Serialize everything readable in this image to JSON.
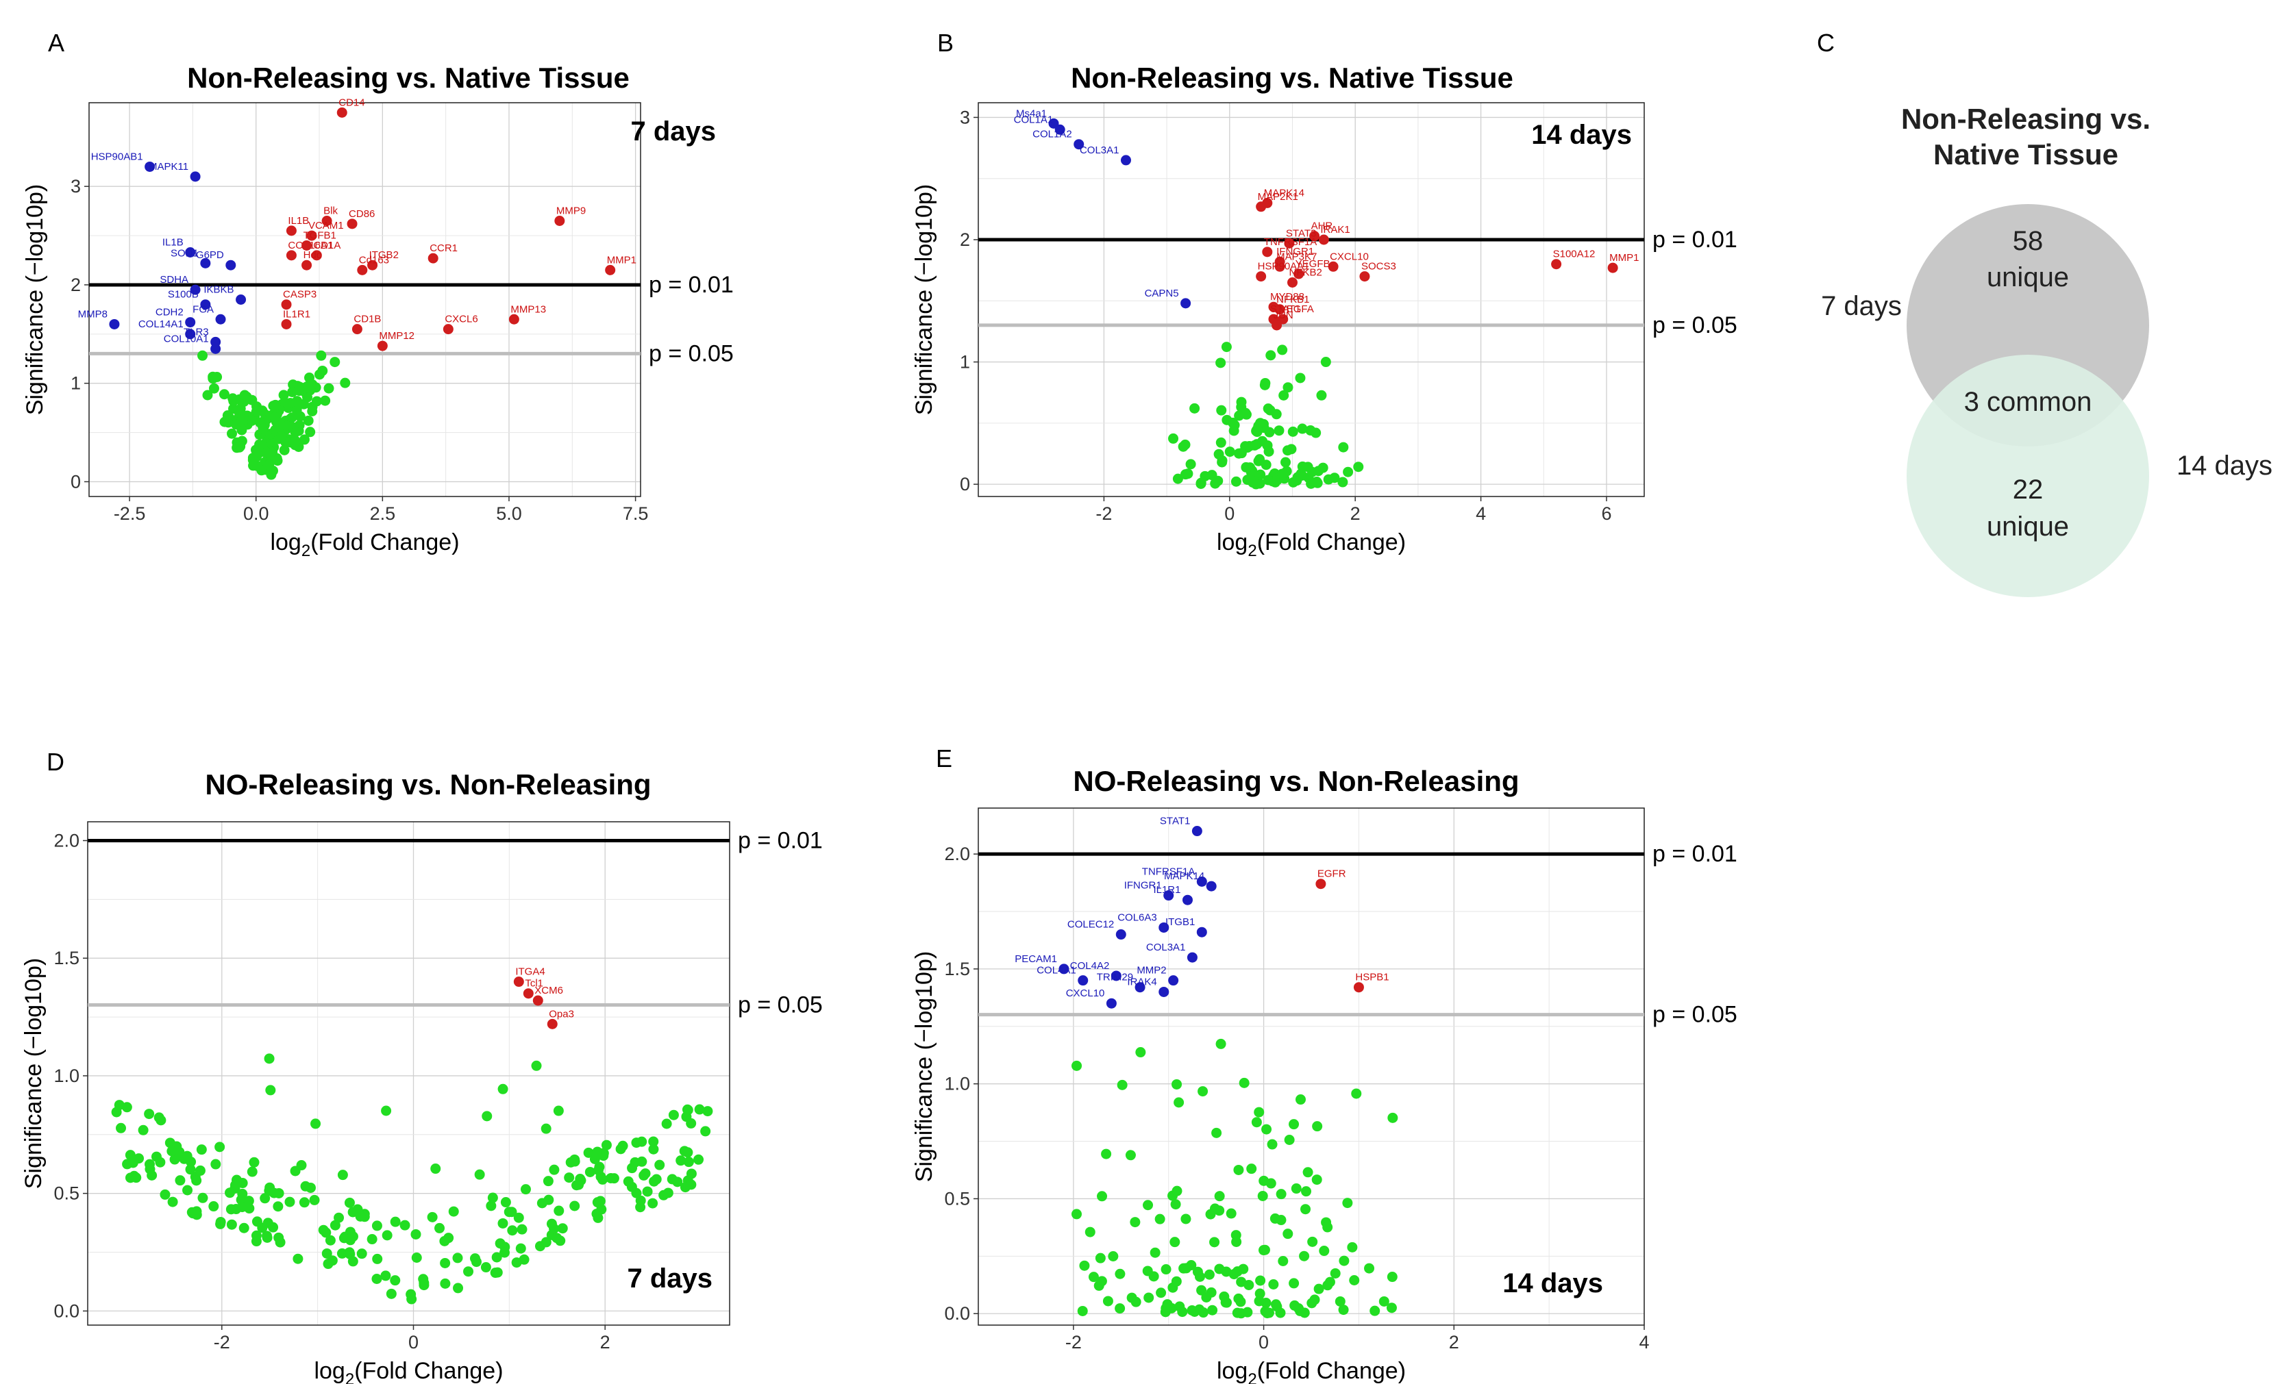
{
  "colors": {
    "up": "#d01d1d",
    "down": "#1c1cbe",
    "ns": "#22dd22",
    "grid": "#cfcfcf",
    "p01": "#000000",
    "p05": "#bdbdbd",
    "venn_top": "#c8c8c8",
    "venn_bottom": "#dcefe4"
  },
  "panels": {
    "A": {
      "letter": "A",
      "title": "Non-Releasing vs. Native Tissue",
      "day_label": "7 days",
      "xlabel_main": "log",
      "xlabel_sub": "2",
      "xlabel_rest": "(Fold Change)",
      "ylabel": "Significance (−log10p)",
      "p01_label": "p = 0.01",
      "p05_label": "p = 0.05"
    },
    "B": {
      "letter": "B",
      "title": "Non-Releasing vs. Native Tissue",
      "day_label": "14 days",
      "xlabel_main": "log",
      "xlabel_sub": "2",
      "xlabel_rest": "(Fold Change)",
      "ylabel": "Significance (−log10p)",
      "p01_label": "p = 0.01",
      "p05_label": "p = 0.05"
    },
    "C": {
      "letter": "C",
      "title_line1": "Non-Releasing vs.",
      "title_line2": "Native Tissue",
      "top_count": "58",
      "top_word": "unique",
      "common": "3 common",
      "bottom_count": "22",
      "bottom_word": "unique",
      "left_label": "7 days",
      "right_label": "14 days"
    },
    "D": {
      "letter": "D",
      "title": "NO-Releasing vs. Non-Releasing",
      "day_label": "7 days",
      "xlabel_main": "log",
      "xlabel_sub": "2",
      "xlabel_rest": "(Fold Change)",
      "ylabel": "Significance (−log10p)",
      "p01_label": "p = 0.01",
      "p05_label": "p = 0.05"
    },
    "E": {
      "letter": "E",
      "title": "NO-Releasing vs. Non-Releasing",
      "day_label": "14 days",
      "xlabel_main": "log",
      "xlabel_sub": "2",
      "xlabel_rest": "(Fold Change)",
      "ylabel": "Significance (−log10p)",
      "p01_label": "p = 0.01",
      "p05_label": "p = 0.05"
    }
  },
  "chart_data": [
    {
      "id": "A",
      "type": "scatter",
      "title": "Non-Releasing vs. Native Tissue",
      "xlabel": "log2(Fold Change)",
      "ylabel": "Significance (−log10 p)",
      "xlim": [
        -3.3,
        7.6
      ],
      "ylim": [
        -0.15,
        3.85
      ],
      "xticks": [
        -2.5,
        0,
        2.5,
        5,
        7.5
      ],
      "xtick_labels": [
        "-2.5",
        "0.0",
        "2.5",
        "5.0",
        "7.5"
      ],
      "yticks": [
        0,
        1,
        2,
        3
      ],
      "ytick_labels": [
        "0",
        "1",
        "2",
        "3"
      ],
      "thresholds": [
        2.0,
        1.301
      ],
      "labeled_points": [
        {
          "gene": "CD14",
          "x": 1.7,
          "y": 3.75,
          "c": "up"
        },
        {
          "gene": "HSP90AB1",
          "x": -2.1,
          "y": 3.2,
          "c": "down"
        },
        {
          "gene": "MAPK11",
          "x": -1.2,
          "y": 3.1,
          "c": "down"
        },
        {
          "gene": "MMP9",
          "x": 6.0,
          "y": 2.65,
          "c": "up"
        },
        {
          "gene": "CD86",
          "x": 1.9,
          "y": 2.62,
          "c": "up"
        },
        {
          "gene": "Blk",
          "x": 1.4,
          "y": 2.65,
          "c": "up"
        },
        {
          "gene": "IL1B",
          "x": 0.7,
          "y": 2.55,
          "c": "up"
        },
        {
          "gene": "VCAM1",
          "x": 1.1,
          "y": 2.5,
          "c": "up"
        },
        {
          "gene": "CCR1",
          "x": 3.5,
          "y": 2.27,
          "c": "up"
        },
        {
          "gene": "ITGB2",
          "x": 2.3,
          "y": 2.2,
          "c": "up"
        },
        {
          "gene": "MMP1",
          "x": 7.0,
          "y": 2.15,
          "c": "up"
        },
        {
          "gene": "IL1B",
          "x": -1.3,
          "y": 2.33,
          "c": "down"
        },
        {
          "gene": "COL16A1",
          "x": 0.7,
          "y": 2.3,
          "c": "up"
        },
        {
          "gene": "TGFB1",
          "x": 1.0,
          "y": 2.4,
          "c": "up"
        },
        {
          "gene": "CD1A",
          "x": 1.2,
          "y": 2.3,
          "c": "up"
        },
        {
          "gene": "Hdc",
          "x": 1.0,
          "y": 2.2,
          "c": "up"
        },
        {
          "gene": "Cd163",
          "x": 2.1,
          "y": 2.15,
          "c": "up"
        },
        {
          "gene": "SOD1",
          "x": -1.0,
          "y": 2.22,
          "c": "down"
        },
        {
          "gene": "G6PD",
          "x": -0.5,
          "y": 2.2,
          "c": "down"
        },
        {
          "gene": "SDHA",
          "x": -1.2,
          "y": 1.95,
          "c": "down"
        },
        {
          "gene": "S100B",
          "x": -1.0,
          "y": 1.8,
          "c": "down"
        },
        {
          "gene": "IKBKB",
          "x": -0.3,
          "y": 1.85,
          "c": "down"
        },
        {
          "gene": "CASP3",
          "x": 0.6,
          "y": 1.8,
          "c": "up"
        },
        {
          "gene": "CDH2",
          "x": -1.3,
          "y": 1.62,
          "c": "down"
        },
        {
          "gene": "FGA",
          "x": -0.7,
          "y": 1.65,
          "c": "down"
        },
        {
          "gene": "IL1R1",
          "x": 0.6,
          "y": 1.6,
          "c": "up"
        },
        {
          "gene": "MMP8",
          "x": -2.8,
          "y": 1.6,
          "c": "down"
        },
        {
          "gene": "COL14A1",
          "x": -1.3,
          "y": 1.5,
          "c": "down"
        },
        {
          "gene": "TLR3",
          "x": -0.8,
          "y": 1.42,
          "c": "down"
        },
        {
          "gene": "CD1B",
          "x": 2.0,
          "y": 1.55,
          "c": "up"
        },
        {
          "gene": "MMP13",
          "x": 5.1,
          "y": 1.65,
          "c": "up"
        },
        {
          "gene": "CXCL6",
          "x": 3.8,
          "y": 1.55,
          "c": "up"
        },
        {
          "gene": "MMP12",
          "x": 2.5,
          "y": 1.38,
          "c": "up"
        },
        {
          "gene": "COL10A1",
          "x": -0.8,
          "y": 1.35,
          "c": "down"
        }
      ],
      "ns_count_approx": 160
    },
    {
      "id": "B",
      "type": "scatter",
      "title": "Non-Releasing vs. Native Tissue",
      "xlabel": "log2(Fold Change)",
      "ylabel": "Significance (−log10 p)",
      "xlim": [
        -4.0,
        6.6
      ],
      "ylim": [
        -0.1,
        3.12
      ],
      "xticks": [
        -2,
        0,
        2,
        4,
        6
      ],
      "xtick_labels": [
        "-2",
        "0",
        "2",
        "4",
        "6"
      ],
      "yticks": [
        0,
        1,
        2,
        3
      ],
      "ytick_labels": [
        "0",
        "1",
        "2",
        "3"
      ],
      "thresholds": [
        2.0,
        1.301
      ],
      "labeled_points": [
        {
          "gene": "Ms4a1",
          "x": -2.8,
          "y": 2.95,
          "c": "down"
        },
        {
          "gene": "COL1A1",
          "x": -2.7,
          "y": 2.9,
          "c": "down"
        },
        {
          "gene": "COL1A2",
          "x": -2.4,
          "y": 2.78,
          "c": "down"
        },
        {
          "gene": "COL3A1",
          "x": -1.65,
          "y": 2.65,
          "c": "down"
        },
        {
          "gene": "MAPK14",
          "x": 0.6,
          "y": 2.3,
          "c": "up"
        },
        {
          "gene": "MAP2K1",
          "x": 0.5,
          "y": 2.27,
          "c": "up"
        },
        {
          "gene": "AHR",
          "x": 1.35,
          "y": 2.03,
          "c": "up"
        },
        {
          "gene": "IRAK1",
          "x": 1.5,
          "y": 2.0,
          "c": "up"
        },
        {
          "gene": "STAT3",
          "x": 0.95,
          "y": 1.97,
          "c": "up"
        },
        {
          "gene": "TNFRSF1A",
          "x": 0.6,
          "y": 1.9,
          "c": "up"
        },
        {
          "gene": "IFNGR1",
          "x": 0.8,
          "y": 1.82,
          "c": "up"
        },
        {
          "gene": "CXCL10",
          "x": 1.65,
          "y": 1.78,
          "c": "up"
        },
        {
          "gene": "MAP3K7",
          "x": 0.8,
          "y": 1.78,
          "c": "up"
        },
        {
          "gene": "YEGFB",
          "x": 1.1,
          "y": 1.72,
          "c": "up"
        },
        {
          "gene": "HSP90AA1",
          "x": 0.5,
          "y": 1.7,
          "c": "up"
        },
        {
          "gene": "SOCS3",
          "x": 2.15,
          "y": 1.7,
          "c": "up"
        },
        {
          "gene": "NFKB2",
          "x": 1.0,
          "y": 1.65,
          "c": "up"
        },
        {
          "gene": "S100A12",
          "x": 5.2,
          "y": 1.8,
          "c": "up"
        },
        {
          "gene": "MMP1",
          "x": 6.1,
          "y": 1.77,
          "c": "up"
        },
        {
          "gene": "CAPN5",
          "x": -0.7,
          "y": 1.48,
          "c": "down"
        },
        {
          "gene": "MYD88",
          "x": 0.7,
          "y": 1.45,
          "c": "up"
        },
        {
          "gene": "NFKB1",
          "x": 0.8,
          "y": 1.43,
          "c": "up"
        },
        {
          "gene": "STAT1",
          "x": 0.7,
          "y": 1.35,
          "c": "up"
        },
        {
          "gene": "VEGFA",
          "x": 0.85,
          "y": 1.35,
          "c": "up"
        },
        {
          "gene": "JUN",
          "x": 0.75,
          "y": 1.3,
          "c": "up"
        }
      ],
      "ns_count_approx": 120
    },
    {
      "id": "C",
      "type": "venn",
      "title": "Non-Releasing vs. Native Tissue",
      "sets": [
        {
          "name": "7 days",
          "unique": 58
        },
        {
          "name": "14 days",
          "unique": 22
        }
      ],
      "common": 3
    },
    {
      "id": "D",
      "type": "scatter",
      "title": "NO-Releasing vs. Non-Releasing",
      "xlabel": "log2(Fold Change)",
      "ylabel": "Significance (−log10 p)",
      "xlim": [
        -3.4,
        3.3
      ],
      "ylim": [
        -0.06,
        2.08
      ],
      "xticks": [
        -2,
        0,
        2
      ],
      "xtick_labels": [
        "-2",
        "0",
        "2"
      ],
      "yticks": [
        0,
        0.5,
        1.0,
        1.5,
        2.0
      ],
      "ytick_labels": [
        "0.0",
        "0.5",
        "1.0",
        "1.5",
        "2.0"
      ],
      "thresholds": [
        2.0,
        1.301
      ],
      "labeled_points": [
        {
          "gene": "ITGA4",
          "x": 1.1,
          "y": 1.4,
          "c": "up"
        },
        {
          "gene": "Tcl1",
          "x": 1.2,
          "y": 1.35,
          "c": "up"
        },
        {
          "gene": "XCM6",
          "x": 1.3,
          "y": 1.32,
          "c": "up"
        },
        {
          "gene": "Opa3",
          "x": 1.45,
          "y": 1.22,
          "c": "up"
        }
      ],
      "ns_count_approx": 260
    },
    {
      "id": "E",
      "type": "scatter",
      "title": "NO-Releasing vs. Non-Releasing",
      "xlabel": "log2(Fold Change)",
      "ylabel": "Significance (−log10 p)",
      "xlim": [
        -3.0,
        4.0
      ],
      "ylim": [
        -0.05,
        2.2
      ],
      "xticks": [
        -2,
        0,
        2,
        4
      ],
      "xtick_labels": [
        "-2",
        "0",
        "2",
        "4"
      ],
      "yticks": [
        0,
        0.5,
        1.0,
        1.5,
        2.0
      ],
      "ytick_labels": [
        "0.0",
        "0.5",
        "1.0",
        "1.5",
        "2.0"
      ],
      "thresholds": [
        2.0,
        1.301
      ],
      "labeled_points": [
        {
          "gene": "STAT1",
          "x": -0.7,
          "y": 2.1,
          "c": "down"
        },
        {
          "gene": "TNFRSF1A",
          "x": -0.65,
          "y": 1.88,
          "c": "down"
        },
        {
          "gene": "MAPK14",
          "x": -0.55,
          "y": 1.86,
          "c": "down"
        },
        {
          "gene": "IFNGR1",
          "x": -1.0,
          "y": 1.82,
          "c": "down"
        },
        {
          "gene": "EGFR",
          "x": 0.6,
          "y": 1.87,
          "c": "up"
        },
        {
          "gene": "IL1R1",
          "x": -0.8,
          "y": 1.8,
          "c": "down"
        },
        {
          "gene": "COL6A3",
          "x": -1.05,
          "y": 1.68,
          "c": "down"
        },
        {
          "gene": "ITGB1",
          "x": -0.65,
          "y": 1.66,
          "c": "down"
        },
        {
          "gene": "COLEC12",
          "x": -1.5,
          "y": 1.65,
          "c": "down"
        },
        {
          "gene": "COL3A1",
          "x": -0.75,
          "y": 1.55,
          "c": "down"
        },
        {
          "gene": "PECAM1",
          "x": -2.1,
          "y": 1.5,
          "c": "down"
        },
        {
          "gene": "COL4A2",
          "x": -1.55,
          "y": 1.47,
          "c": "down"
        },
        {
          "gene": "MMP2",
          "x": -0.95,
          "y": 1.45,
          "c": "down"
        },
        {
          "gene": "COL4A1",
          "x": -1.9,
          "y": 1.45,
          "c": "down"
        },
        {
          "gene": "TRIM29",
          "x": -1.3,
          "y": 1.42,
          "c": "down"
        },
        {
          "gene": "IRAK4",
          "x": -1.05,
          "y": 1.4,
          "c": "down"
        },
        {
          "gene": "HSPB1",
          "x": 1.0,
          "y": 1.42,
          "c": "up"
        },
        {
          "gene": "CXCL10",
          "x": -1.6,
          "y": 1.35,
          "c": "down"
        }
      ],
      "ns_count_approx": 150
    }
  ]
}
